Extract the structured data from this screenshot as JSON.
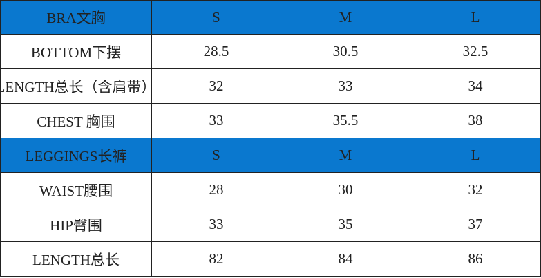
{
  "sections": [
    {
      "header": [
        "BRA文胸",
        "S",
        "M",
        "L"
      ],
      "rows": [
        [
          "BOTTOM下摆",
          "28.5",
          "30.5",
          "32.5"
        ],
        [
          "LENGTH总长（含肩带）",
          "32",
          "33",
          "34"
        ],
        [
          "CHEST 胸围",
          "33",
          "35.5",
          "38"
        ]
      ]
    },
    {
      "header": [
        "LEGGINGS长裤",
        "S",
        "M",
        "L"
      ],
      "rows": [
        [
          "WAIST腰围",
          "28",
          "30",
          "32"
        ],
        [
          "HIP臀围",
          "33",
          "35",
          "37"
        ],
        [
          "LENGTH总长",
          "82",
          "84",
          "86"
        ]
      ]
    }
  ]
}
